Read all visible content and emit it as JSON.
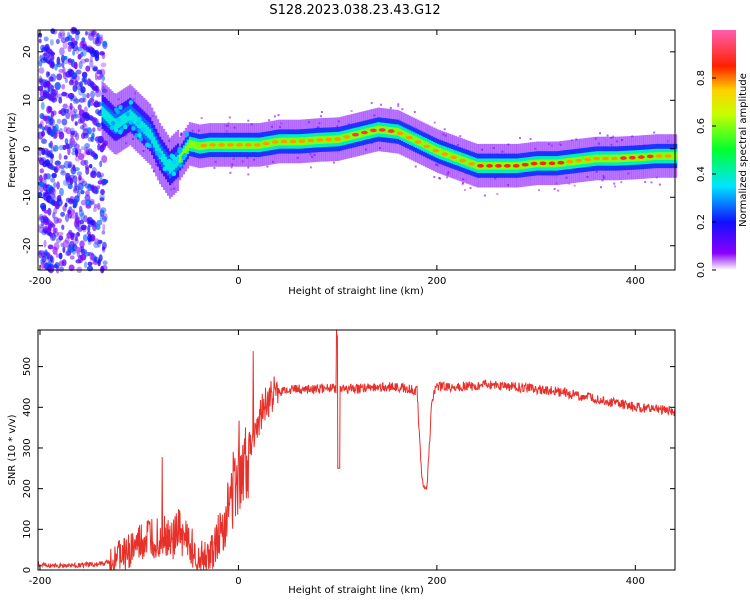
{
  "title": "S128.2023.038.23.43.G12",
  "chart_data": [
    {
      "type": "heatmap",
      "xlabel": "Height of straight line (km)",
      "ylabel": "Frequency (Hz)",
      "xlim": [
        -202,
        440
      ],
      "ylim": [
        -25,
        24.5
      ],
      "xticks": [
        -200,
        0,
        200,
        400
      ],
      "yticks": [
        -20,
        -10,
        0,
        10,
        20
      ],
      "colorbar": {
        "label": "Normalized spectral amplitude",
        "range": [
          0,
          1
        ],
        "ticks": [
          "0.0",
          "0.2",
          "0.4",
          "0.6",
          "0.8"
        ],
        "colors": [
          "#ffffff",
          "#7b00ff",
          "#0000ff",
          "#00ffff",
          "#00ff00",
          "#ffff00",
          "#ff0000",
          "#ff5fa0"
        ]
      },
      "ridge": {
        "x": [
          -140,
          -125,
          -110,
          -100,
          -90,
          -80,
          -70,
          -60,
          -50,
          -40,
          -30,
          -20,
          0,
          20,
          40,
          60,
          80,
          100,
          120,
          140,
          160,
          180,
          200,
          220,
          240,
          260,
          280,
          300,
          320,
          340,
          360,
          380,
          400,
          420,
          440
        ],
        "y": [
          8,
          5,
          7,
          5,
          3,
          -1,
          -4,
          -2,
          1,
          0.5,
          0.8,
          0.8,
          0.8,
          0.8,
          1.5,
          1.5,
          1.8,
          2,
          3,
          4,
          3.5,
          1.5,
          -0.5,
          -2,
          -3.5,
          -3.5,
          -3.5,
          -3,
          -3,
          -2.5,
          -2,
          -2,
          -1.8,
          -1.5,
          -1.5
        ]
      }
    },
    {
      "type": "line",
      "xlabel": "Height of straight line (km)",
      "ylabel": "SNR (10 * v/v)",
      "xlim": [
        -202,
        440
      ],
      "ylim": [
        0,
        590
      ],
      "xticks": [
        -200,
        0,
        200,
        400
      ],
      "yticks": [
        0,
        100,
        200,
        300,
        400,
        500
      ],
      "color": "#e8302a",
      "series": [
        {
          "x": [
            -200,
            -180,
            -160,
            -140,
            -130,
            -120,
            -110,
            -100,
            -90,
            -80,
            -70,
            -60,
            -50,
            -40,
            -30,
            -20,
            -10,
            0,
            10,
            20,
            30,
            40,
            60,
            80,
            95,
            100,
            105,
            120,
            140,
            160,
            180,
            185,
            190,
            195,
            200,
            220,
            250,
            280,
            300,
            320,
            340,
            360,
            380,
            400,
            420,
            440
          ],
          "y": [
            12,
            10,
            12,
            14,
            20,
            35,
            45,
            60,
            75,
            85,
            75,
            90,
            65,
            40,
            30,
            80,
            150,
            250,
            300,
            370,
            420,
            440,
            445,
            445,
            450,
            440,
            445,
            445,
            450,
            450,
            440,
            220,
            200,
            420,
            450,
            450,
            455,
            450,
            445,
            440,
            430,
            420,
            410,
            400,
            395,
            390
          ]
        }
      ]
    }
  ]
}
